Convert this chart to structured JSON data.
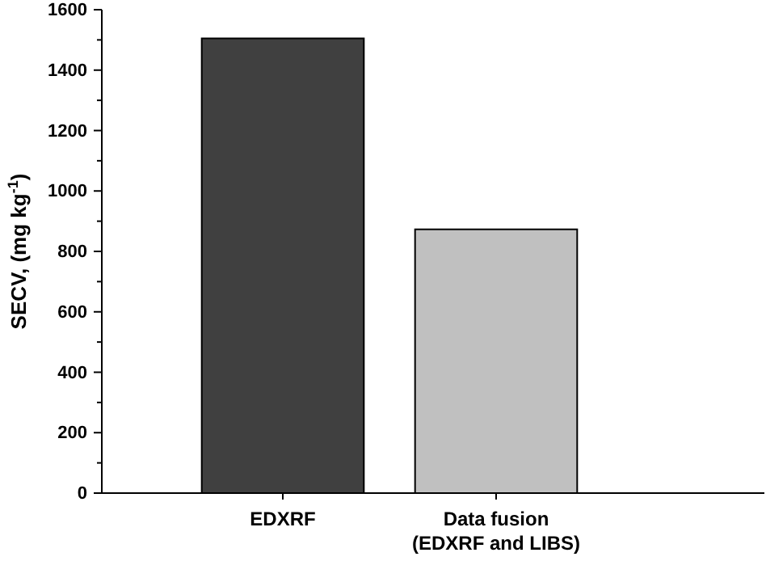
{
  "chart_data": {
    "type": "bar",
    "ylabel": "SECV, (mg kg$^{-1}$)",
    "categories": [
      "EDXRF",
      "Data fusion\n(EDXRF and LIBS)"
    ],
    "values": [
      1505,
      873
    ],
    "colors": [
      "#404040",
      "#c0c0c0"
    ],
    "ylim": [
      0,
      1600
    ],
    "yticks": [
      0,
      {
        "value": 100,
        "label": null
      },
      200,
      {
        "value": 300,
        "label": null
      },
      400,
      {
        "value": 500,
        "label": null
      },
      600,
      {
        "value": 700,
        "label": null
      },
      800,
      {
        "value": 900,
        "label": null
      },
      1000,
      {
        "value": 1100,
        "label": null
      },
      1200,
      {
        "value": 1300,
        "label": null
      },
      1400,
      {
        "value": 1500,
        "label": null
      },
      1600
    ],
    "grid": false
  }
}
